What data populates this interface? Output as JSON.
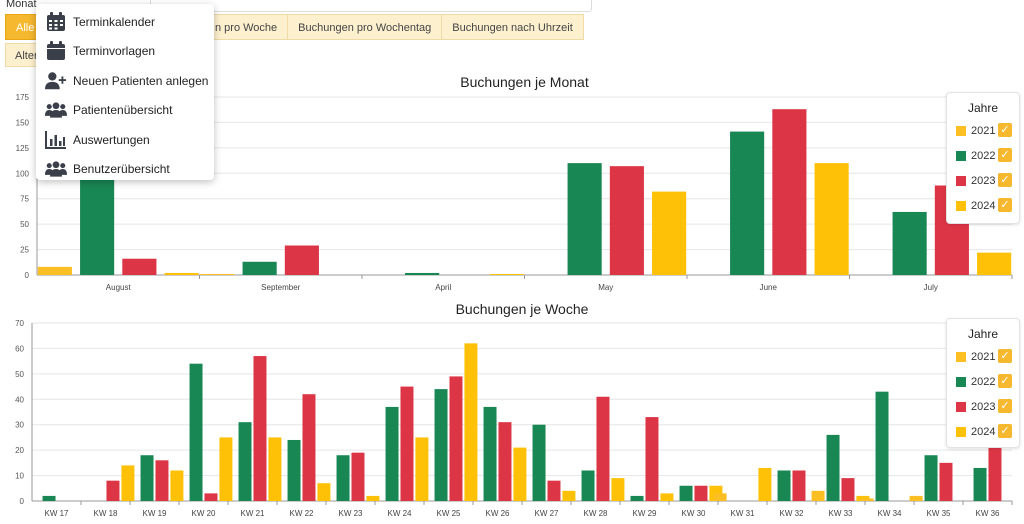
{
  "filter": {
    "label": "Monat"
  },
  "tabs": [
    {
      "label": "Alle"
    },
    {
      "label": "n pro Woche"
    },
    {
      "label": "Buchungen pro Wochentag"
    },
    {
      "label": "Buchungen nach Uhrzeit"
    }
  ],
  "tab_row2": {
    "label": "Alter"
  },
  "menu": {
    "items": [
      {
        "label": "Terminkalender",
        "icon": "calendar-grid-icon"
      },
      {
        "label": "Terminvorlagen",
        "icon": "calendar-icon"
      },
      {
        "label": "Neuen Patienten anlegen",
        "icon": "user-plus-icon"
      },
      {
        "label": "Patientenübersicht",
        "icon": "users-icon"
      },
      {
        "label": "Auswertungen",
        "icon": "bar-chart-icon"
      },
      {
        "label": "Benutzerübersicht",
        "icon": "users-icon"
      }
    ]
  },
  "colors": {
    "2021": "#fbbf24",
    "2022": "#198754",
    "2023": "#dc3545",
    "2024": "#ffc107",
    "accent": "#f5b82e"
  },
  "legend": {
    "title": "Jahre",
    "items": [
      {
        "label": "2021",
        "color": "#fbbf24",
        "checked": true
      },
      {
        "label": "2022",
        "color": "#198754",
        "checked": true
      },
      {
        "label": "2023",
        "color": "#dc3545",
        "checked": true
      },
      {
        "label": "2024",
        "color": "#ffc107",
        "checked": true
      }
    ]
  },
  "chart_data": [
    {
      "type": "bar",
      "title": "Buchungen je Monat",
      "categories": [
        "August",
        "September",
        "April",
        "May",
        "June",
        "July"
      ],
      "ylim": [
        0,
        175
      ],
      "yticks": [
        0,
        25,
        50,
        75,
        100,
        125,
        150,
        175
      ],
      "series": [
        {
          "name": "2021",
          "color": "#fbbf24",
          "values": [
            8,
            1,
            0,
            0,
            0,
            0
          ]
        },
        {
          "name": "2022",
          "color": "#198754",
          "values": [
            96,
            13,
            2,
            110,
            141,
            62
          ]
        },
        {
          "name": "2023",
          "color": "#dc3545",
          "values": [
            16,
            29,
            0,
            107,
            163,
            88
          ]
        },
        {
          "name": "2024",
          "color": "#ffc107",
          "values": [
            2,
            0,
            1,
            82,
            110,
            22
          ]
        }
      ],
      "legend": "right",
      "grid": true
    },
    {
      "type": "bar",
      "title": "Buchungen je Woche",
      "categories": [
        "KW 17",
        "KW 18",
        "KW 19",
        "KW 20",
        "KW 21",
        "KW 22",
        "KW 23",
        "KW 24",
        "KW 25",
        "KW 26",
        "KW 27",
        "KW 28",
        "KW 29",
        "KW 30",
        "KW 31",
        "KW 32",
        "KW 33",
        "KW 34",
        "KW 35",
        "KW 36"
      ],
      "ylim": [
        0,
        70
      ],
      "yticks": [
        0,
        10,
        20,
        30,
        40,
        50,
        60,
        70
      ],
      "series": [
        {
          "name": "2021",
          "color": "#fbbf24",
          "values": [
            0,
            0,
            0,
            0,
            0,
            0,
            0,
            0,
            0,
            0,
            0,
            0,
            0,
            0,
            3,
            0,
            4,
            1,
            2,
            0
          ]
        },
        {
          "name": "2022",
          "color": "#198754",
          "values": [
            2,
            0,
            18,
            54,
            31,
            24,
            18,
            37,
            44,
            37,
            30,
            12,
            2,
            6,
            0,
            12,
            26,
            43,
            18,
            13
          ]
        },
        {
          "name": "2023",
          "color": "#dc3545",
          "values": [
            0,
            8,
            16,
            3,
            57,
            42,
            19,
            45,
            49,
            31,
            8,
            41,
            33,
            6,
            0,
            12,
            9,
            0,
            15,
            21
          ]
        },
        {
          "name": "2024",
          "color": "#ffc107",
          "values": [
            0,
            14,
            12,
            25,
            25,
            7,
            2,
            25,
            62,
            21,
            4,
            9,
            3,
            6,
            13,
            0,
            2,
            0,
            0,
            0
          ]
        }
      ],
      "legend": "right",
      "grid": true
    }
  ]
}
